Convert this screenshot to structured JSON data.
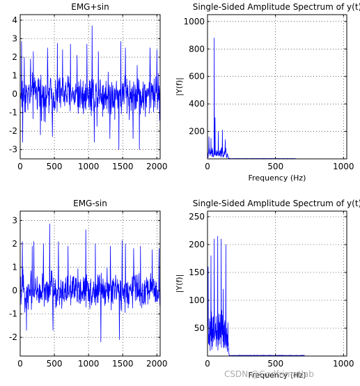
{
  "watermark": "CSDN @Godfrimatlab",
  "colors": {
    "series": "#0000ff",
    "axes": "#000000",
    "grid": "#000000",
    "background": "#ffffff"
  },
  "chart_data": [
    {
      "type": "line",
      "title": "EMG+sin",
      "xlabel": "",
      "ylabel": "",
      "xlim": [
        0,
        2048
      ],
      "ylim": [
        -3.5,
        4.3
      ],
      "xticks": [
        0,
        500,
        1000,
        1500,
        2000
      ],
      "yticks": [
        -3,
        -2,
        -1,
        0,
        1,
        2,
        3,
        4
      ],
      "grid": true,
      "series": [
        {
          "style": "dense-noise",
          "n_points": 2048,
          "baseline": 0,
          "typical_amplitude": 1.3,
          "peaks": [
            {
              "x": 20,
              "y": 2.85
            },
            {
              "x": 35,
              "y": -2.6
            },
            {
              "x": 60,
              "y": 2.0
            },
            {
              "x": 150,
              "y": 1.9
            },
            {
              "x": 190,
              "y": 2.3
            },
            {
              "x": 295,
              "y": -2.2
            },
            {
              "x": 400,
              "y": 2.5
            },
            {
              "x": 470,
              "y": -2.3
            },
            {
              "x": 545,
              "y": 2.75
            },
            {
              "x": 620,
              "y": 2.4
            },
            {
              "x": 735,
              "y": 2.7
            },
            {
              "x": 830,
              "y": 2.1
            },
            {
              "x": 975,
              "y": 2.7
            },
            {
              "x": 1050,
              "y": 3.7
            },
            {
              "x": 1085,
              "y": -2.6
            },
            {
              "x": 1145,
              "y": 2.3
            },
            {
              "x": 1310,
              "y": -2.4
            },
            {
              "x": 1445,
              "y": -3.0
            },
            {
              "x": 1470,
              "y": 2.85
            },
            {
              "x": 1540,
              "y": 2.5
            },
            {
              "x": 1650,
              "y": -2.4
            },
            {
              "x": 1745,
              "y": -3.0
            },
            {
              "x": 1900,
              "y": 2.5
            },
            {
              "x": 2000,
              "y": 2.4
            }
          ]
        }
      ]
    },
    {
      "type": "line",
      "title": "Single-Sided Amplitude Spectrum of y(t)",
      "xlabel": "Frequency (Hz)",
      "ylabel": "|Y(f)|",
      "xlim": [
        0,
        1024
      ],
      "ylim": [
        0,
        1050
      ],
      "xticks": [
        0,
        500,
        1000
      ],
      "yticks": [
        200,
        400,
        600,
        800,
        1000
      ],
      "grid": true,
      "series": [
        {
          "style": "spectrum",
          "x_max": 650,
          "noise_band_end": 160,
          "typical_amplitude": 80,
          "tail_level": 2,
          "peaks": [
            {
              "x": 50,
              "y": 880
            },
            {
              "x": 55,
              "y": 300
            },
            {
              "x": 10,
              "y": 160
            },
            {
              "x": 25,
              "y": 150
            },
            {
              "x": 80,
              "y": 200
            },
            {
              "x": 110,
              "y": 210
            },
            {
              "x": 130,
              "y": 140
            }
          ]
        }
      ]
    },
    {
      "type": "line",
      "title": "EMG-sin",
      "xlabel": "",
      "ylabel": "",
      "xlim": [
        0,
        2048
      ],
      "ylim": [
        -2.8,
        3.4
      ],
      "xticks": [
        0,
        500,
        1000,
        1500,
        2000
      ],
      "yticks": [
        -2,
        -1,
        0,
        1,
        2,
        3
      ],
      "grid": true,
      "series": [
        {
          "style": "dense-noise",
          "n_points": 2048,
          "baseline": 0,
          "typical_amplitude": 0.9,
          "peaks": [
            {
              "x": 30,
              "y": 2.1
            },
            {
              "x": 90,
              "y": -1.7
            },
            {
              "x": 175,
              "y": 1.9
            },
            {
              "x": 200,
              "y": 2.1
            },
            {
              "x": 340,
              "y": 2.0
            },
            {
              "x": 430,
              "y": 2.85
            },
            {
              "x": 480,
              "y": -1.7
            },
            {
              "x": 560,
              "y": 2.1
            },
            {
              "x": 700,
              "y": 1.9
            },
            {
              "x": 960,
              "y": 2.6
            },
            {
              "x": 1100,
              "y": 2.0
            },
            {
              "x": 1180,
              "y": -2.2
            },
            {
              "x": 1320,
              "y": 1.9
            },
            {
              "x": 1450,
              "y": -2.1
            },
            {
              "x": 1490,
              "y": 2.15
            },
            {
              "x": 1540,
              "y": 2.0
            },
            {
              "x": 1660,
              "y": 1.8
            },
            {
              "x": 1760,
              "y": 1.9
            },
            {
              "x": 1930,
              "y": 1.75
            },
            {
              "x": 2030,
              "y": 1.8
            }
          ]
        }
      ]
    },
    {
      "type": "line",
      "title": "Single-Sided Amplitude Spectrum of y(t)",
      "xlabel": "Frequency (Hz)",
      "ylabel": "|Y(f)|",
      "xlim": [
        0,
        1024
      ],
      "ylim": [
        0,
        260
      ],
      "xticks": [
        0,
        500,
        1000
      ],
      "yticks": [
        50,
        100,
        150,
        200,
        250
      ],
      "grid": true,
      "series": [
        {
          "style": "spectrum",
          "x_max": 715,
          "noise_band_end": 160,
          "typical_amplitude": 80,
          "tail_level": 1,
          "peaks": [
            {
              "x": 5,
              "y": 160
            },
            {
              "x": 25,
              "y": 180
            },
            {
              "x": 50,
              "y": 210
            },
            {
              "x": 75,
              "y": 215
            },
            {
              "x": 100,
              "y": 210
            },
            {
              "x": 115,
              "y": 120
            },
            {
              "x": 135,
              "y": 200
            },
            {
              "x": 150,
              "y": 60
            }
          ]
        }
      ]
    }
  ]
}
